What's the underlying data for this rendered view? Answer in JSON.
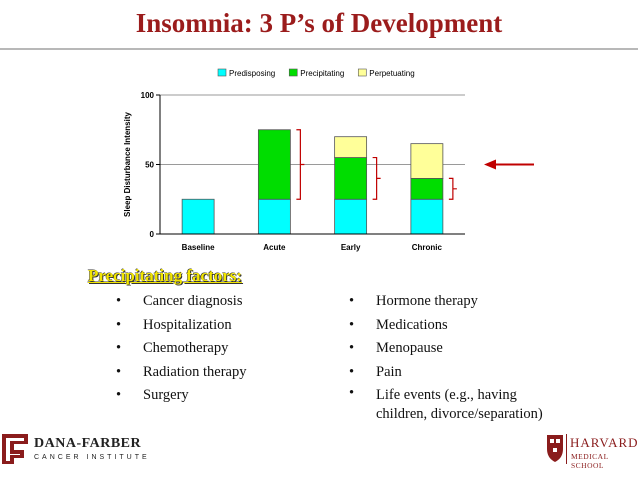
{
  "slide": {
    "title": "Insomnia: 3 P’s of Development",
    "heading": "Precipitating factors:",
    "left_factors": [
      "Cancer diagnosis",
      "Hospitalization",
      "Chemotherapy",
      "Radiation therapy",
      "Surgery"
    ],
    "right_factors": [
      "Hormone therapy",
      "Medications",
      "Menopause",
      "Pain"
    ],
    "right_factor_last": [
      "Life events (e.g., having",
      "children, divorce/separation)"
    ],
    "bullet": "•"
  },
  "footer": {
    "left_name": "DANA-FARBER",
    "left_sub": "CANCER INSTITUTE",
    "right_name": "HARVARD",
    "right_sub": "MEDICAL SCHOOL"
  },
  "colors": {
    "title": "#9b1c1c",
    "predisposing": "#00ffff",
    "precipitating": "#00dd00",
    "perpetuating": "#ffff99",
    "brackets": "#c00000",
    "heading": "#f2e600"
  },
  "chart_data": {
    "type": "bar",
    "stacked": true,
    "categories": [
      "Baseline",
      "Acute",
      "Early",
      "Chronic"
    ],
    "series": [
      {
        "name": "Predisposing",
        "values": [
          25,
          25,
          25,
          25
        ],
        "color": "#00ffff"
      },
      {
        "name": "Precipitating",
        "values": [
          0,
          50,
          30,
          15
        ],
        "color": "#00dd00"
      },
      {
        "name": "Perpetuating",
        "values": [
          0,
          0,
          15,
          25
        ],
        "color": "#ffff99"
      }
    ],
    "ylabel": "Sleep Disturbance Intensity",
    "xlabel": "",
    "ylim": [
      0,
      100
    ],
    "yticks": [
      0,
      50,
      100
    ],
    "gridlines": [
      50,
      100
    ],
    "legend": "top",
    "annotations": "red brackets beside Acute, Early and Chronic precipitating segments; red arrow pointing left at the 50 level"
  }
}
